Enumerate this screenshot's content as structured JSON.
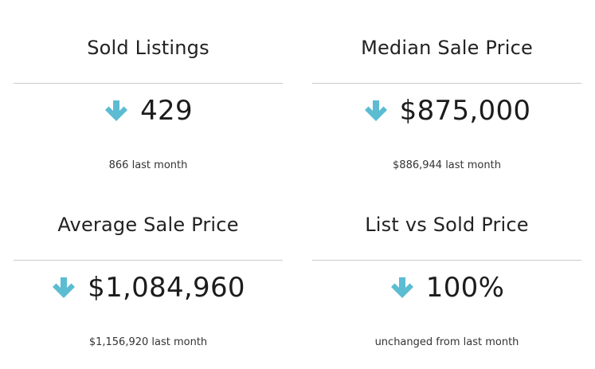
{
  "accent_color": "#5bbcd2",
  "stats": [
    {
      "title": "Sold Listings",
      "trend_icon": "arrow-down-icon",
      "value": "429",
      "comparison": "866 last month"
    },
    {
      "title": "Median Sale Price",
      "trend_icon": "arrow-down-icon",
      "value": "$875,000",
      "comparison": "$886,944 last month"
    },
    {
      "title": "Average Sale Price",
      "trend_icon": "arrow-down-icon",
      "value": "$1,084,960",
      "comparison": "$1,156,920 last month"
    },
    {
      "title": "List vs Sold Price",
      "trend_icon": "arrow-down-icon",
      "value": "100%",
      "comparison": "unchanged from last month"
    }
  ]
}
